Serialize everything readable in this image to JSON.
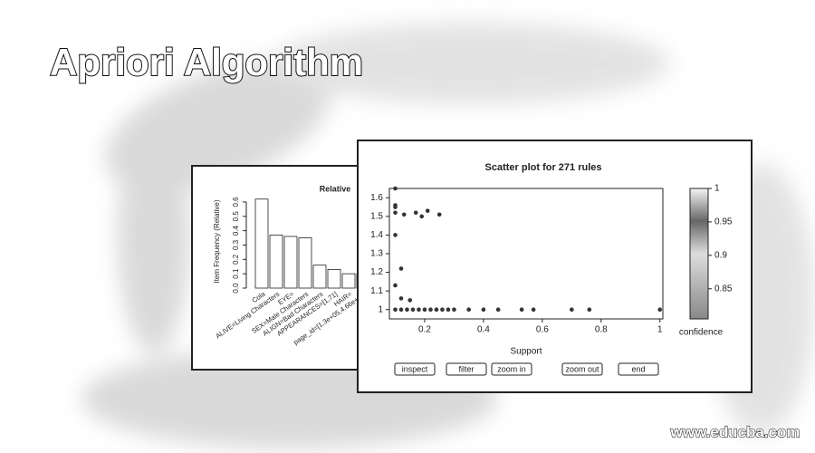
{
  "header": {
    "title": "Apriori Algorithm"
  },
  "watermark": "www.educba.com",
  "buttons": [
    "inspect",
    "filter",
    "zoom in",
    "zoom out",
    "end"
  ],
  "chart_data": [
    {
      "type": "bar",
      "title": "Relative",
      "y_label": "Item Frequency (Relative)",
      "categories": [
        "Cola",
        "ALIVE=Living Characters",
        "EYE=",
        "SEX=Male Characters",
        "ALIGN=Bad Characters",
        "APPEARANCES=[1,71]",
        "HAIR=",
        "page_id=[1.3e+05,4.66e+05]"
      ],
      "values": [
        0.62,
        0.37,
        0.36,
        0.35,
        0.16,
        0.13,
        0.1,
        0.1
      ],
      "color": "#ffffff",
      "ylim": [
        0,
        0.65
      ],
      "yticks": [
        {
          "value": 0,
          "label": "0.0"
        },
        {
          "value": 0.1,
          "label": "0.1"
        },
        {
          "value": 0.2,
          "label": "0.2"
        },
        {
          "value": 0.3,
          "label": "0.3"
        },
        {
          "value": 0.4,
          "label": "0.4"
        },
        {
          "value": 0.5,
          "label": "0.5"
        },
        {
          "value": 0.6,
          "label": "0.6"
        }
      ]
    },
    {
      "type": "scatter",
      "title": "Scatter plot for 271 rules",
      "x_label": "Support",
      "x": [
        0.1,
        0.1,
        0.1,
        0.1,
        0.13,
        0.17,
        0.19,
        0.21,
        0.25,
        0.1,
        0.12,
        0.1,
        0.12,
        0.15,
        0.1,
        0.12,
        0.14,
        0.16,
        0.18,
        0.2,
        0.22,
        0.24,
        0.26,
        0.28,
        0.3,
        0.35,
        0.4,
        0.45,
        0.53,
        0.57,
        0.7,
        0.76,
        1.0
      ],
      "values": [
        1.65,
        1.56,
        1.55,
        1.52,
        1.51,
        1.52,
        1.5,
        1.53,
        1.51,
        1.4,
        1.22,
        1.13,
        1.06,
        1.05,
        1.0,
        1.0,
        1.0,
        1.0,
        1.0,
        1.0,
        1.0,
        1.0,
        1.0,
        1.0,
        1.0,
        1.0,
        1.0,
        1.0,
        1.0,
        1.0,
        1.0,
        1.0,
        1.0
      ],
      "color": "#333333",
      "xlim": [
        0.08,
        1.01
      ],
      "ylim": [
        0.95,
        1.65
      ],
      "xticks": [
        0.2,
        0.4,
        0.6,
        0.8,
        1
      ],
      "yticks": [
        1,
        1.1,
        1.2,
        1.3,
        1.4,
        1.5,
        1.6
      ],
      "colorbar": {
        "label": "confidence",
        "lim": [
          0.805,
          1
        ],
        "ticks": [
          0.85,
          0.9,
          0.95,
          1
        ]
      }
    }
  ]
}
